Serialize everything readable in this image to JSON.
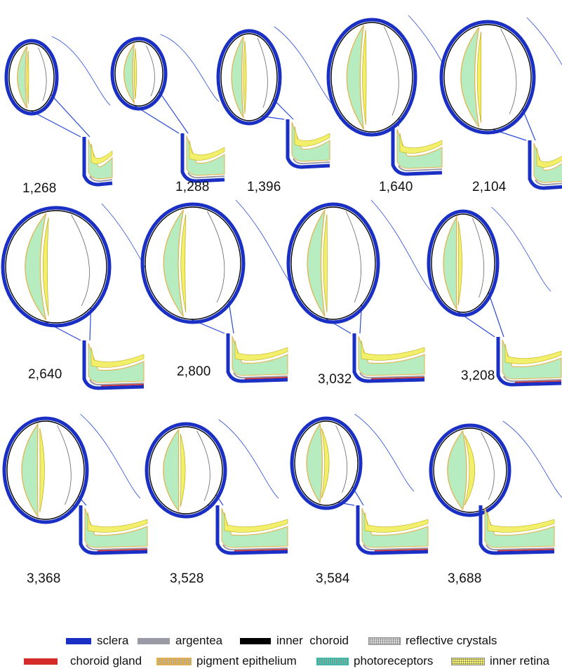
{
  "panels": [
    {
      "label": "1,268"
    },
    {
      "label": "1,288"
    },
    {
      "label": "1,396"
    },
    {
      "label": "1,640"
    },
    {
      "label": "2,104"
    },
    {
      "label": "2,640"
    },
    {
      "label": "2,800"
    },
    {
      "label": "3,032"
    },
    {
      "label": "3,208"
    },
    {
      "label": "3,368"
    },
    {
      "label": "3,528"
    },
    {
      "label": "3,584"
    },
    {
      "label": "3,688"
    }
  ],
  "legend": [
    {
      "label": "sclera",
      "color": "#1a2fc4",
      "pattern": "solid"
    },
    {
      "label": "argentea",
      "color": "#9a9aa6",
      "pattern": "solid"
    },
    {
      "label": "inner  choroid",
      "color": "#000000",
      "pattern": "solid"
    },
    {
      "label": "reflective crystals",
      "color": "#d9d9d9",
      "pattern": "dotted"
    },
    {
      "label": "choroid gland",
      "color": "#d62b2b",
      "pattern": "solid"
    },
    {
      "label": "pigment epithelium",
      "color": "#e5b04a",
      "pattern": "striped"
    },
    {
      "label": "photoreceptors",
      "color": "#35b8a3",
      "pattern": "striped"
    },
    {
      "label": "inner retina",
      "color": "#f2ef6a",
      "pattern": "dotted"
    }
  ],
  "colors": {
    "sclera": "#1a2fc4",
    "argentea": "#9a9aa6",
    "inner_choroid": "#000000",
    "choroid_gland": "#d62b2b",
    "pigment": "#e5b04a",
    "photoreceptors": "#b6ecc0",
    "inner_retina": "#f2ef6a",
    "outline": "#2a4bd9"
  }
}
